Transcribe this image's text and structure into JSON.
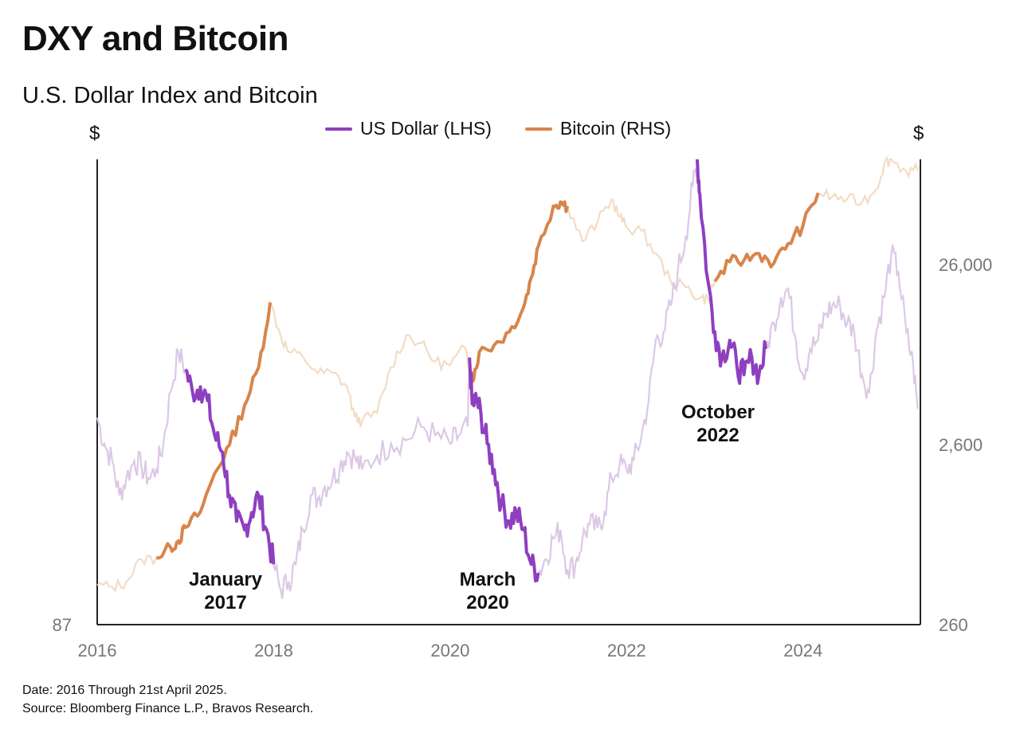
{
  "title": "DXY and Bitcoin",
  "subtitle": "U.S. Dollar Index and Bitcoin",
  "footnote": {
    "date": "Date: 2016 Through 21st April 2025.",
    "source": "Source: Bloomberg Finance L.P., Bravos Research."
  },
  "colors": {
    "dxy": "#8e3fc0",
    "btc": "#d8854a",
    "dxy_faded": "#dcc8e6",
    "btc_faded": "#f2dcc4",
    "axis": "#222222"
  },
  "chart_data": {
    "type": "line",
    "title": "DXY and Bitcoin",
    "subtitle": "U.S. Dollar Index and Bitcoin",
    "left_axis": {
      "label": "$",
      "ticks": [
        {
          "value": 87,
          "label": "87"
        }
      ],
      "range": [
        87,
        114
      ]
    },
    "right_axis": {
      "label": "$",
      "scale": "log",
      "range": [
        260,
        100000
      ],
      "ticks": [
        {
          "value": 260,
          "label": "260"
        },
        {
          "value": 2600,
          "label": "2,600"
        },
        {
          "value": 26000,
          "label": "26,000"
        }
      ]
    },
    "x_axis": {
      "range": [
        2016,
        2025.33
      ],
      "ticks": [
        {
          "value": 2016,
          "label": "2016"
        },
        {
          "value": 2018,
          "label": "2018"
        },
        {
          "value": 2020,
          "label": "2020"
        },
        {
          "value": 2022,
          "label": "2022"
        },
        {
          "value": 2024,
          "label": "2024"
        }
      ]
    },
    "legend": {
      "placement": "top-center",
      "entries": [
        "US Dollar (LHS)",
        "Bitcoin (RHS)"
      ]
    },
    "grid": false,
    "series": [
      {
        "name": "US Dollar (LHS)",
        "axis": "left",
        "x": [
          2016.0,
          2016.08,
          2016.17,
          2016.25,
          2016.33,
          2016.42,
          2016.5,
          2016.58,
          2016.67,
          2016.75,
          2016.83,
          2016.92,
          2017.0,
          2017.08,
          2017.17,
          2017.25,
          2017.33,
          2017.42,
          2017.5,
          2017.58,
          2017.67,
          2017.75,
          2017.83,
          2017.92,
          2018.0,
          2018.08,
          2018.17,
          2018.25,
          2018.33,
          2018.42,
          2018.5,
          2018.58,
          2018.67,
          2018.75,
          2018.83,
          2018.92,
          2019.0,
          2019.17,
          2019.33,
          2019.5,
          2019.67,
          2019.83,
          2020.0,
          2020.1,
          2020.2,
          2020.22,
          2020.25,
          2020.3,
          2020.35,
          2020.42,
          2020.5,
          2020.58,
          2020.67,
          2020.75,
          2020.83,
          2020.92,
          2021.0,
          2021.08,
          2021.17,
          2021.25,
          2021.33,
          2021.42,
          2021.5,
          2021.58,
          2021.67,
          2021.75,
          2021.83,
          2021.92,
          2022.0,
          2022.08,
          2022.17,
          2022.25,
          2022.33,
          2022.42,
          2022.5,
          2022.58,
          2022.67,
          2022.75,
          2022.8,
          2022.83,
          2022.92,
          2023.0,
          2023.08,
          2023.17,
          2023.25,
          2023.33,
          2023.42,
          2023.5,
          2023.58,
          2023.67,
          2023.75,
          2023.83,
          2023.92,
          2024.0,
          2024.08,
          2024.17,
          2024.25,
          2024.33,
          2024.42,
          2024.5,
          2024.58,
          2024.67,
          2024.75,
          2024.83,
          2024.92,
          2025.0,
          2025.08,
          2025.17,
          2025.25,
          2025.3
        ],
        "values": [
          99.0,
          97.5,
          96.5,
          94.5,
          95.5,
          96.5,
          96.2,
          95.5,
          96.0,
          97.5,
          100.5,
          102.8,
          101.8,
          100.5,
          100.8,
          100.0,
          98.0,
          97.0,
          94.5,
          93.0,
          92.5,
          93.5,
          94.5,
          92.5,
          90.5,
          89.0,
          89.5,
          90.5,
          92.5,
          94.5,
          94.3,
          95.0,
          95.5,
          96.2,
          97.0,
          96.7,
          96.0,
          96.8,
          97.5,
          97.7,
          98.5,
          98.0,
          97.5,
          98.0,
          98.5,
          102.5,
          99.8,
          100.0,
          99.2,
          97.5,
          96.0,
          94.0,
          93.0,
          93.5,
          92.5,
          90.5,
          90.0,
          90.8,
          92.0,
          92.5,
          90.2,
          90.5,
          92.0,
          92.8,
          92.6,
          93.5,
          95.5,
          96.3,
          96.0,
          96.5,
          98.0,
          100.0,
          103.5,
          104.0,
          105.5,
          107.5,
          109.5,
          112.5,
          114.0,
          112.0,
          107.0,
          104.0,
          102.5,
          103.5,
          102.0,
          101.5,
          102.5,
          101.5,
          103.0,
          104.5,
          106.0,
          106.5,
          103.5,
          101.5,
          103.0,
          103.5,
          105.0,
          105.5,
          105.5,
          104.5,
          104.0,
          101.5,
          100.5,
          104.0,
          106.0,
          108.5,
          107.5,
          104.0,
          102.0,
          99.5
        ]
      },
      {
        "name": "Bitcoin (RHS)",
        "axis": "right",
        "x": [
          2016.0,
          2016.17,
          2016.33,
          2016.5,
          2016.67,
          2016.83,
          2016.92,
          2017.0,
          2017.17,
          2017.33,
          2017.5,
          2017.67,
          2017.83,
          2017.96,
          2018.08,
          2018.17,
          2018.33,
          2018.5,
          2018.67,
          2018.83,
          2018.92,
          2019.0,
          2019.17,
          2019.33,
          2019.5,
          2019.67,
          2019.83,
          2020.0,
          2020.17,
          2020.25,
          2020.33,
          2020.5,
          2020.67,
          2020.83,
          2020.92,
          2021.0,
          2021.17,
          2021.25,
          2021.33,
          2021.5,
          2021.67,
          2021.83,
          2021.92,
          2022.0,
          2022.17,
          2022.33,
          2022.5,
          2022.67,
          2022.83,
          2022.92,
          2023.0,
          2023.17,
          2023.33,
          2023.5,
          2023.67,
          2023.83,
          2024.0,
          2024.17,
          2024.33,
          2024.5,
          2024.67,
          2024.83,
          2024.92,
          2025.0,
          2025.17,
          2025.3
        ],
        "values": [
          430,
          420,
          450,
          600,
          610,
          700,
          760,
          900,
          1100,
          1800,
          2600,
          4300,
          7000,
          16000,
          10500,
          8500,
          8000,
          6500,
          6500,
          5500,
          3700,
          3500,
          3900,
          7000,
          10500,
          9500,
          7500,
          7200,
          9000,
          5800,
          8500,
          9300,
          11000,
          15000,
          22000,
          33000,
          55000,
          58000,
          55000,
          35000,
          45000,
          60000,
          48000,
          42000,
          40000,
          30000,
          21000,
          19500,
          17000,
          16800,
          21000,
          27000,
          27500,
          30000,
          26500,
          34000,
          43000,
          65000,
          62000,
          60000,
          58000,
          68000,
          95000,
          100000,
          86000,
          87000
        ]
      }
    ],
    "annotations": [
      {
        "lines": [
          "January",
          "2017"
        ]
      },
      {
        "lines": [
          "March",
          "2020"
        ]
      },
      {
        "lines": [
          "October",
          "2022"
        ]
      }
    ]
  }
}
